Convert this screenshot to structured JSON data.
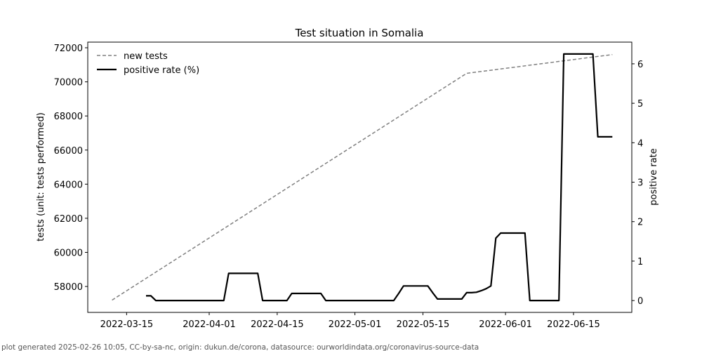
{
  "chart_data": {
    "type": "line",
    "title": "Test situation in Somalia",
    "xlabel": "",
    "ylabel": "tests (unit: tests performed)",
    "ylabel_right": "positive rate",
    "x_ticks": [
      "2022-03-15",
      "2022-04-01",
      "2022-04-15",
      "2022-05-01",
      "2022-05-15",
      "2022-06-01",
      "2022-06-15"
    ],
    "xlim": [
      "2022-03-07",
      "2022-06-27"
    ],
    "ylim": [
      56480,
      72330
    ],
    "y_ticks": [
      58000,
      60000,
      62000,
      64000,
      66000,
      68000,
      70000,
      72000
    ],
    "ylim_right": [
      -0.3,
      6.55
    ],
    "y_ticks_right": [
      0,
      1,
      2,
      3,
      4,
      5,
      6
    ],
    "legend_position": "top-left",
    "series": [
      {
        "name": "new tests",
        "axis": "left",
        "color": "#808080",
        "style": "dashed",
        "points": [
          [
            "2022-03-12",
            57200
          ],
          [
            "2022-05-24",
            70500
          ],
          [
            "2022-06-23",
            71600
          ]
        ]
      },
      {
        "name": "positive rate (%)",
        "axis": "right",
        "color": "#000000",
        "style": "solid",
        "points": [
          [
            "2022-03-19",
            0.12
          ],
          [
            "2022-03-20",
            0.12
          ],
          [
            "2022-03-21",
            0.0
          ],
          [
            "2022-04-04",
            0.0
          ],
          [
            "2022-04-05",
            0.69
          ],
          [
            "2022-04-11",
            0.69
          ],
          [
            "2022-04-12",
            0.0
          ],
          [
            "2022-04-17",
            0.0
          ],
          [
            "2022-04-18",
            0.18
          ],
          [
            "2022-04-24",
            0.18
          ],
          [
            "2022-04-25",
            0.0
          ],
          [
            "2022-05-09",
            0.0
          ],
          [
            "2022-05-10",
            0.18
          ],
          [
            "2022-05-11",
            0.37
          ],
          [
            "2022-05-16",
            0.37
          ],
          [
            "2022-05-17",
            0.2
          ],
          [
            "2022-05-18",
            0.04
          ],
          [
            "2022-05-23",
            0.04
          ],
          [
            "2022-05-24",
            0.2
          ],
          [
            "2022-05-25",
            0.2
          ],
          [
            "2022-05-26",
            0.21
          ],
          [
            "2022-05-27",
            0.25
          ],
          [
            "2022-05-28",
            0.3
          ],
          [
            "2022-05-29",
            0.37
          ],
          [
            "2022-05-30",
            1.58
          ],
          [
            "2022-05-31",
            1.71
          ],
          [
            "2022-06-05",
            1.71
          ],
          [
            "2022-06-06",
            0.0
          ],
          [
            "2022-06-12",
            0.0
          ],
          [
            "2022-06-13",
            6.25
          ],
          [
            "2022-06-19",
            6.25
          ],
          [
            "2022-06-20",
            4.15
          ],
          [
            "2022-06-23",
            4.15
          ]
        ]
      }
    ]
  },
  "footer": "plot generated 2025-02-26 10:05, CC-by-sa-nc, origin: dukun.de/corona, datasource: ourworldindata.org/coronavirus-source-data"
}
